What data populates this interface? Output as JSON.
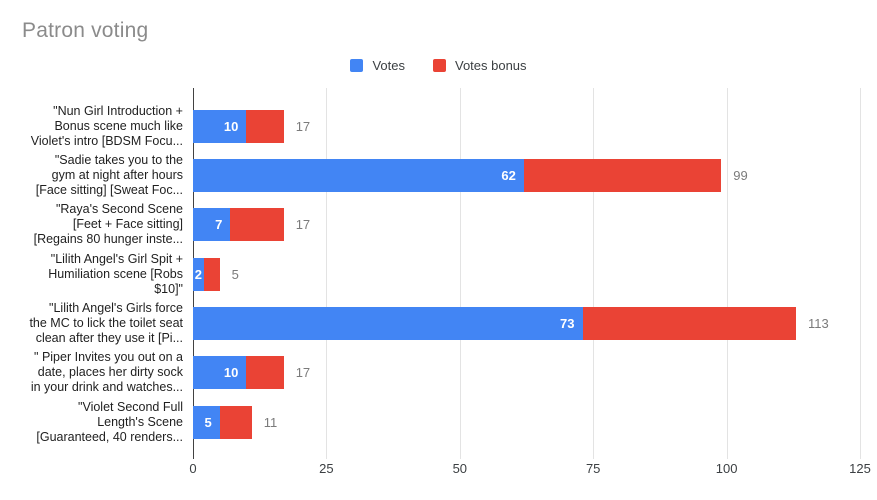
{
  "title": "Patron voting",
  "legend": {
    "items": [
      {
        "label": "Votes",
        "color": "#4285f4"
      },
      {
        "label": "Votes bonus",
        "color": "#ea4335"
      }
    ],
    "position": "top-center"
  },
  "colors": {
    "votes": "#4285f4",
    "votes_bonus": "#ea4335",
    "title_text": "#8b8b8b",
    "total_label_text": "#7b7b7b",
    "category_text": "#1f1f1f",
    "gridline": "#e3e3e3",
    "zero_axis": "#424242",
    "background": "#ffffff"
  },
  "chart_data": {
    "type": "bar",
    "orientation": "horizontal",
    "stacked": true,
    "title": "Patron voting",
    "xlabel": "",
    "ylabel": "",
    "xlim": [
      0,
      125
    ],
    "xticks": [
      0,
      25,
      50,
      75,
      100,
      125
    ],
    "grid": true,
    "legend_position": "top",
    "categories": [
      "\"Nun Girl Introduction +\nBonus scene much like\nViolet's intro [BDSM Focu...",
      "\"Sadie takes you to the\ngym at night after hours\n[Face sitting] [Sweat Foc...",
      "\"Raya's Second Scene\n[Feet + Face sitting]\n[Regains 80 hunger inste...",
      "\"Lilith Angel's Girl Spit +\nHumiliation scene [Robs\n$10]\"",
      "\"Lilith Angel's Girls force\nthe MC to lick the toilet seat\nclean after they use it [Pi...",
      "\" Piper Invites you out on a\ndate, places her dirty sock\nin your drink and watches...",
      "\"Violet Second Full\nLength's Scene\n[Guaranteed, 40 renders..."
    ],
    "series": [
      {
        "name": "Votes",
        "color": "#4285f4",
        "values": [
          10,
          62,
          7,
          2,
          73,
          10,
          5
        ]
      },
      {
        "name": "Votes bonus",
        "color": "#ea4335",
        "values": [
          7,
          37,
          10,
          3,
          40,
          7,
          6
        ]
      }
    ],
    "totals": [
      17,
      99,
      17,
      5,
      113,
      17,
      11
    ],
    "bar_value_labels": [
      10,
      62,
      7,
      2,
      73,
      10,
      5
    ]
  }
}
